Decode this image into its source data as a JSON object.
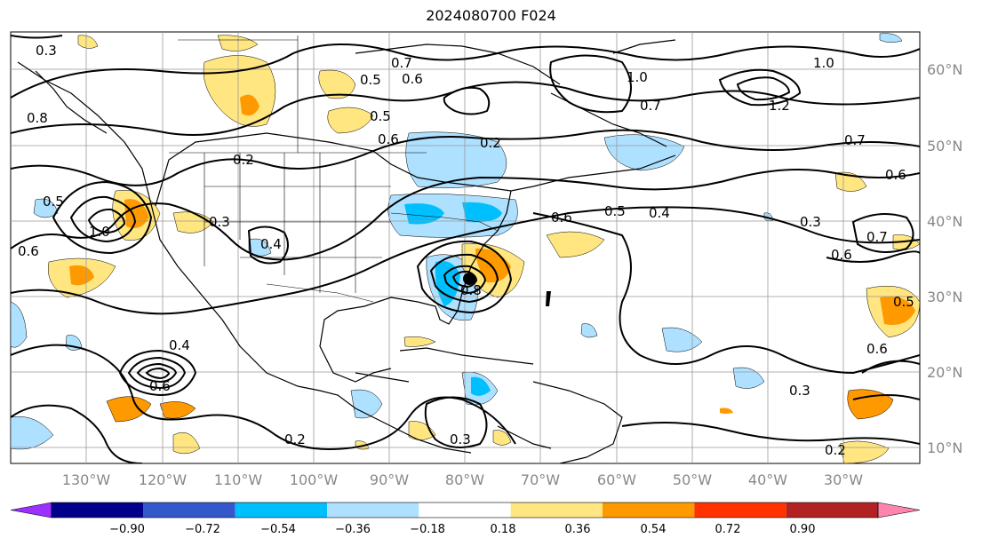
{
  "title": "2024080700 F024",
  "map": {
    "lon_labels": [
      "130°W",
      "120°W",
      "110°W",
      "100°W",
      "90°W",
      "80°W",
      "70°W",
      "60°W",
      "50°W",
      "40°W",
      "30°W"
    ],
    "lat_labels": [
      "60°N",
      "50°N",
      "40°N",
      "30°N",
      "20°N",
      "10°N"
    ],
    "lon_range": [
      -138,
      -18
    ],
    "lat_range": [
      7,
      65
    ],
    "grid": true,
    "contour_labels": [
      "0.3",
      "0.7",
      "0.6",
      "0.5",
      "0.5",
      "0.6",
      "0.2",
      "1.0",
      "0.7",
      "1.0",
      "1.2",
      "0.7",
      "0.6",
      "0.5",
      "0.4",
      "0.6",
      "0.3",
      "0.6",
      "0.7",
      "0.5",
      "0.6",
      "0.3",
      "0.2",
      "0.2",
      "0.3",
      "0.4",
      "0.2",
      "1.0",
      "0.6",
      "0.8",
      "0.5",
      "0.6",
      "0.4",
      "0.3",
      "0.8"
    ],
    "colors": {
      "land_outline": "#000000",
      "positive_light": "#ffe680",
      "positive_dark": "#ff9900",
      "negative_light": "#aee0ff",
      "negative_dark": "#00bfff"
    }
  },
  "colorbar": {
    "ticks": [
      "−0.90",
      "−0.72",
      "−0.54",
      "−0.36",
      "−0.18",
      "0.18",
      "0.36",
      "0.54",
      "0.72",
      "0.90"
    ],
    "colors": [
      "#9b30ff",
      "#00008b",
      "#3557cc",
      "#00bfff",
      "#aee0ff",
      "#ffffff",
      "#ffe680",
      "#ff9900",
      "#ff3300",
      "#b22222",
      "#ff85b0"
    ]
  }
}
